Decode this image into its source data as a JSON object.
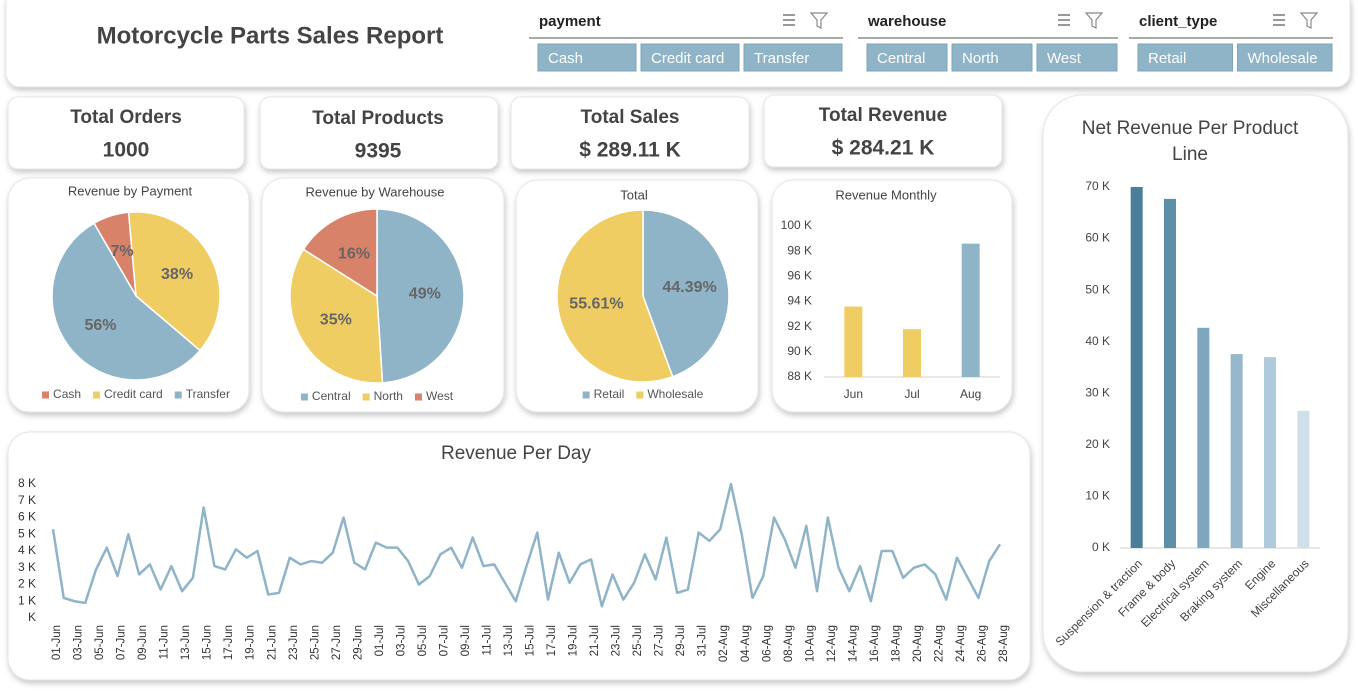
{
  "header": {
    "title": "Motorcycle Parts Sales Report",
    "slicers": [
      {
        "name": "payment",
        "items": [
          "Cash",
          "Credit card",
          "Transfer"
        ]
      },
      {
        "name": "warehouse",
        "items": [
          "Central",
          "North",
          "West"
        ]
      },
      {
        "name": "client_type",
        "items": [
          "Retail",
          "Wholesale"
        ]
      }
    ]
  },
  "kpis": [
    {
      "label": "Total Orders",
      "value": 1000
    },
    {
      "label": "Total Products",
      "value": 9395
    },
    {
      "label": "Total Sales",
      "value": "$ 289.11 K"
    },
    {
      "label": "Total Revenue",
      "value": "$ 284.21 K"
    }
  ],
  "chart_data": [
    {
      "type": "pie",
      "title": "Revenue by Payment",
      "categories": [
        "Cash",
        "Credit card",
        "Transfer"
      ],
      "values": [
        7,
        38,
        56
      ],
      "value_labels": [
        "7%",
        "38%",
        "56%"
      ],
      "colors": [
        "#d9826a",
        "#f0cd62",
        "#8fb4c8"
      ],
      "legend": "bottom"
    },
    {
      "type": "pie",
      "title": "Revenue by Warehouse",
      "categories": [
        "Central",
        "North",
        "West"
      ],
      "values": [
        49,
        35,
        16
      ],
      "value_labels": [
        "49%",
        "35%",
        "16%"
      ],
      "colors": [
        "#8fb4c8",
        "#f0cd62",
        "#d9826a"
      ],
      "legend": "bottom"
    },
    {
      "type": "pie",
      "title": "Total",
      "categories": [
        "Retail",
        "Wholesale"
      ],
      "values": [
        44.39,
        55.61
      ],
      "value_labels": [
        "44.39%",
        "55.61%"
      ],
      "colors": [
        "#8fb4c8",
        "#f0cd62"
      ],
      "legend": "bottom"
    },
    {
      "type": "bar",
      "title": "Revenue Monthly",
      "categories": [
        "Jun",
        "Jul",
        "Aug"
      ],
      "values": [
        93.6,
        91.8,
        98.6
      ],
      "colors": [
        "#f0cd62",
        "#f0cd62",
        "#8fb4c8"
      ],
      "ylim": [
        88,
        100
      ],
      "yticks": [
        {
          "value": 88,
          "label": "88 K"
        },
        {
          "value": 90,
          "label": "90 K"
        },
        {
          "value": 92,
          "label": "92 K"
        },
        {
          "value": 94,
          "label": "94 K"
        },
        {
          "value": 96,
          "label": "96 K"
        },
        {
          "value": 98,
          "label": "98 K"
        },
        {
          "value": 100,
          "label": "100 K"
        }
      ],
      "grid": false
    },
    {
      "type": "line",
      "title": "Revenue Per Day",
      "categories": [
        "01-Jun",
        null,
        "03-Jun",
        null,
        "05-Jun",
        null,
        "07-Jun",
        null,
        "09-Jun",
        null,
        "11-Jun",
        null,
        "13-Jun",
        null,
        "15-Jun",
        null,
        "17-Jun",
        null,
        "19-Jun",
        null,
        "21-Jun",
        null,
        "23-Jun",
        null,
        "25-Jun",
        null,
        "27-Jun",
        null,
        "29-Jun",
        null,
        "01-Jul",
        null,
        "03-Jul",
        null,
        "05-Jul",
        null,
        "07-Jul",
        null,
        "09-Jul",
        null,
        "11-Jul",
        null,
        "13-Jul",
        null,
        "15-Jul",
        null,
        "17-Jul",
        null,
        "19-Jul",
        null,
        "21-Jul",
        null,
        "23-Jul",
        null,
        "25-Jul",
        null,
        "27-Jul",
        null,
        "29-Jul",
        null,
        "31-Jul",
        null,
        "02-Aug",
        null,
        "04-Aug",
        null,
        "06-Aug",
        null,
        "08-Aug",
        null,
        "10-Aug",
        null,
        "12-Aug",
        null,
        "14-Aug",
        null,
        "16-Aug",
        null,
        "18-Aug",
        null,
        "20-Aug",
        null,
        "22-Aug",
        null,
        "24-Aug",
        null,
        "26-Aug",
        null,
        "28-Aug"
      ],
      "values": [
        5.3,
        1.2,
        1.0,
        0.9,
        2.9,
        4.2,
        2.5,
        5.0,
        2.6,
        3.2,
        1.7,
        3.1,
        1.6,
        2.4,
        6.6,
        3.1,
        2.9,
        4.1,
        3.6,
        4.0,
        1.4,
        1.5,
        3.6,
        3.2,
        3.4,
        3.3,
        3.9,
        6.0,
        3.3,
        2.9,
        4.5,
        4.2,
        4.2,
        3.4,
        2.0,
        2.5,
        3.8,
        4.2,
        3.0,
        4.8,
        3.1,
        3.2,
        2.1,
        1.0,
        3.1,
        5.1,
        1.1,
        3.9,
        2.1,
        3.2,
        3.5,
        0.7,
        2.6,
        1.1,
        2.1,
        3.8,
        2.3,
        4.8,
        1.5,
        1.7,
        5.1,
        4.6,
        5.3,
        8.0,
        5.0,
        1.2,
        2.5,
        6.0,
        4.7,
        3.0,
        5.5,
        1.6,
        6.0,
        3.0,
        1.6,
        3.1,
        1.0,
        4.0,
        4.0,
        2.4,
        3.0,
        3.2,
        2.6,
        1.1,
        3.6,
        2.4,
        1.2,
        3.4,
        4.4
      ],
      "color": "#8fb4c8",
      "ylim": [
        0,
        8
      ],
      "yticks": [
        {
          "value": 0,
          "label": "K"
        },
        {
          "value": 1,
          "label": "1 K"
        },
        {
          "value": 2,
          "label": "2 K"
        },
        {
          "value": 3,
          "label": "3 K"
        },
        {
          "value": 4,
          "label": "4 K"
        },
        {
          "value": 5,
          "label": "5 K"
        },
        {
          "value": 6,
          "label": "6 K"
        },
        {
          "value": 7,
          "label": "7 K"
        },
        {
          "value": 8,
          "label": "8 K"
        }
      ],
      "grid": false
    },
    {
      "type": "bar",
      "title": "Net Revenue Per Product Line",
      "categories": [
        "Suspension & traction",
        "Frame & body",
        "Electrical system",
        "Braking system",
        "Engine",
        "Miscellaneous"
      ],
      "values": [
        70,
        67.7,
        42.7,
        37.6,
        37.0,
        26.6
      ],
      "colors": [
        "#4a7f9a",
        "#5d8fa8",
        "#7ea7bd",
        "#97b8ca",
        "#aecadb",
        "#cfe0ea"
      ],
      "ylim": [
        0,
        70
      ],
      "yticks": [
        {
          "value": 0,
          "label": "0 K"
        },
        {
          "value": 10,
          "label": "10 K"
        },
        {
          "value": 20,
          "label": "20 K"
        },
        {
          "value": 30,
          "label": "30 K"
        },
        {
          "value": 40,
          "label": "40 K"
        },
        {
          "value": 50,
          "label": "50 K"
        },
        {
          "value": 60,
          "label": "60 K"
        },
        {
          "value": 70,
          "label": "70 K"
        }
      ],
      "grid": false
    }
  ]
}
